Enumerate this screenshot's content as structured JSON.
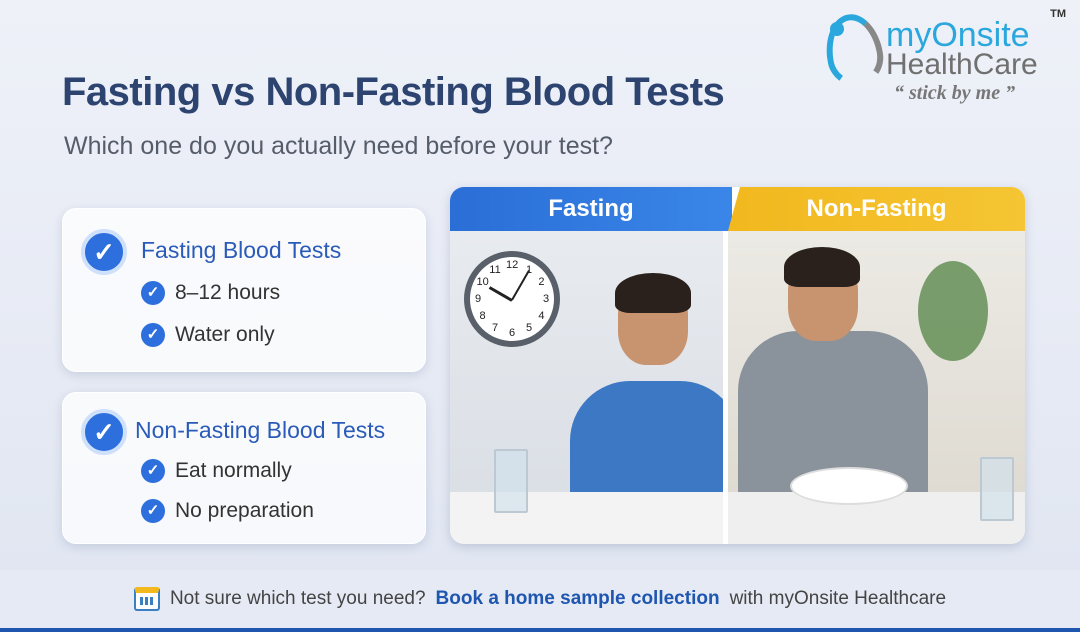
{
  "title": "Fasting vs Non-Fasting Blood Tests",
  "subtitle": "Which one do you actually need before your test?",
  "logo": {
    "line1": "myOnsite",
    "line2": "HealthCare",
    "tagline": "“ stick by me ”",
    "tm": "TM",
    "colors": {
      "blue": "#2aa7dc",
      "gray": "#707070"
    }
  },
  "cards": [
    {
      "title": "Fasting Blood Tests",
      "items": [
        "8–12 hours",
        "Water only"
      ]
    },
    {
      "title": "Non-Fasting Blood Tests",
      "items": [
        "Eat normally",
        "No preparation"
      ]
    }
  ],
  "panel": {
    "tabs": [
      "Fasting",
      "Non-Fasting"
    ],
    "tab_colors": [
      "#2a6ed6",
      "#f2b81e"
    ],
    "clock_numbers": [
      "12",
      "1",
      "2",
      "3",
      "4",
      "5",
      "6",
      "7",
      "8",
      "9",
      "10",
      "11"
    ]
  },
  "footer": {
    "icon": "calendar-icon",
    "text_before": "Not sure which test you need?",
    "link": "Book a home sample collection",
    "text_after": "with myOnsite Healthcare"
  },
  "accent": "#2d6fdc"
}
